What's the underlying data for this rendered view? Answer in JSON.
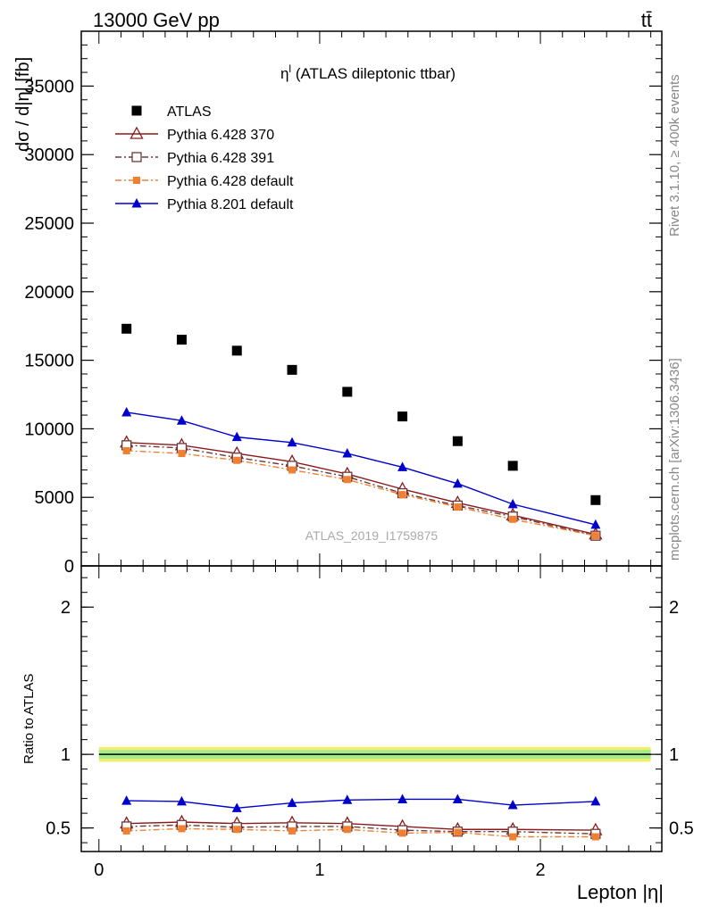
{
  "header": {
    "left": "13000 GeV pp",
    "right": "tt̄"
  },
  "side_labels": {
    "rivet": "Rivet 3.1.10, ≥ 400k events",
    "mcplots": "mcplots.cern.ch [arXiv:1306.3436]"
  },
  "chart_data": [
    {
      "type": "scatter",
      "panel": "main",
      "title_main": "η",
      "title_sup": "l",
      "title_rest": " (ATLAS dileptonic ttbar)",
      "ylabel": "dσ / d|η| [fb]",
      "xlabel": "Lepton |η|",
      "watermark": "ATLAS_2019_I1759875",
      "xlim": [
        -0.08,
        2.55
      ],
      "ylim": [
        0,
        39000
      ],
      "yticks": [
        0,
        5000,
        10000,
        15000,
        20000,
        25000,
        30000,
        35000
      ],
      "ytick_labels": [
        "0",
        "5000",
        "10000",
        "15000",
        "20000",
        "25000",
        "30000",
        "35000"
      ],
      "x": [
        0.125,
        0.375,
        0.625,
        0.875,
        1.125,
        1.375,
        1.625,
        1.875,
        2.25
      ],
      "series": [
        {
          "name": "ATLAS",
          "color": "#000000",
          "marker": "square",
          "line": "none",
          "values": [
            17300,
            16500,
            15700,
            14300,
            12700,
            10900,
            9100,
            7300,
            4800
          ]
        },
        {
          "name": "Pythia 6.428 370",
          "color": "#8b1a1a",
          "marker": "triangle-open",
          "line": "solid",
          "values": [
            9000,
            8800,
            8200,
            7600,
            6700,
            5600,
            4600,
            3700,
            2300
          ]
        },
        {
          "name": "Pythia 6.428 391",
          "color": "#6b3a3a",
          "marker": "square-open",
          "line": "dashdot",
          "values": [
            8800,
            8600,
            7900,
            7300,
            6500,
            5300,
            4400,
            3600,
            2200
          ]
        },
        {
          "name": "Pythia 6.428 default",
          "color": "#f08030",
          "marker": "square-small",
          "line": "dashdot",
          "values": [
            8400,
            8200,
            7700,
            7000,
            6300,
            5200,
            4300,
            3400,
            2200
          ]
        },
        {
          "name": "Pythia 8.201 default",
          "color": "#0000cc",
          "marker": "triangle",
          "line": "solid",
          "values": [
            11200,
            10600,
            9400,
            9000,
            8200,
            7200,
            6000,
            4500,
            3000
          ]
        }
      ]
    },
    {
      "type": "line",
      "panel": "ratio",
      "ylabel": "Ratio to ATLAS",
      "xlim": [
        -0.08,
        2.55
      ],
      "ylim": [
        0.34,
        2.28
      ],
      "yticks": [
        0.5,
        1,
        2
      ],
      "ytick_labels": [
        "0.5",
        "1",
        "2"
      ],
      "xticks": [
        0,
        1,
        2
      ],
      "xtick_labels": [
        "0",
        "1",
        "2"
      ],
      "x": [
        0.125,
        0.375,
        0.625,
        0.875,
        1.125,
        1.375,
        1.625,
        1.875,
        2.25
      ],
      "band_outer": 0.05,
      "band_inner": 0.03,
      "series": [
        {
          "name": "Pythia 6.428 370",
          "color": "#8b1a1a",
          "marker": "triangle-open",
          "line": "solid",
          "values": [
            0.53,
            0.54,
            0.53,
            0.535,
            0.53,
            0.51,
            0.49,
            0.49,
            0.485
          ]
        },
        {
          "name": "Pythia 6.428 391",
          "color": "#6b3a3a",
          "marker": "square-open",
          "line": "dashdot",
          "values": [
            0.51,
            0.52,
            0.505,
            0.51,
            0.51,
            0.485,
            0.475,
            0.475,
            0.46
          ]
        },
        {
          "name": "Pythia 6.428 default",
          "color": "#f08030",
          "marker": "square-small",
          "line": "dashdot",
          "values": [
            0.48,
            0.495,
            0.49,
            0.48,
            0.49,
            0.465,
            0.47,
            0.44,
            0.44
          ]
        },
        {
          "name": "Pythia 8.201 default",
          "color": "#0000cc",
          "marker": "triangle",
          "line": "solid",
          "values": [
            0.685,
            0.68,
            0.635,
            0.67,
            0.69,
            0.695,
            0.695,
            0.655,
            0.68
          ],
          "errors": [
            0.008,
            0.01,
            0.008,
            0.01,
            0.013,
            0.015,
            0.015,
            0.017,
            0.015
          ]
        }
      ]
    }
  ]
}
